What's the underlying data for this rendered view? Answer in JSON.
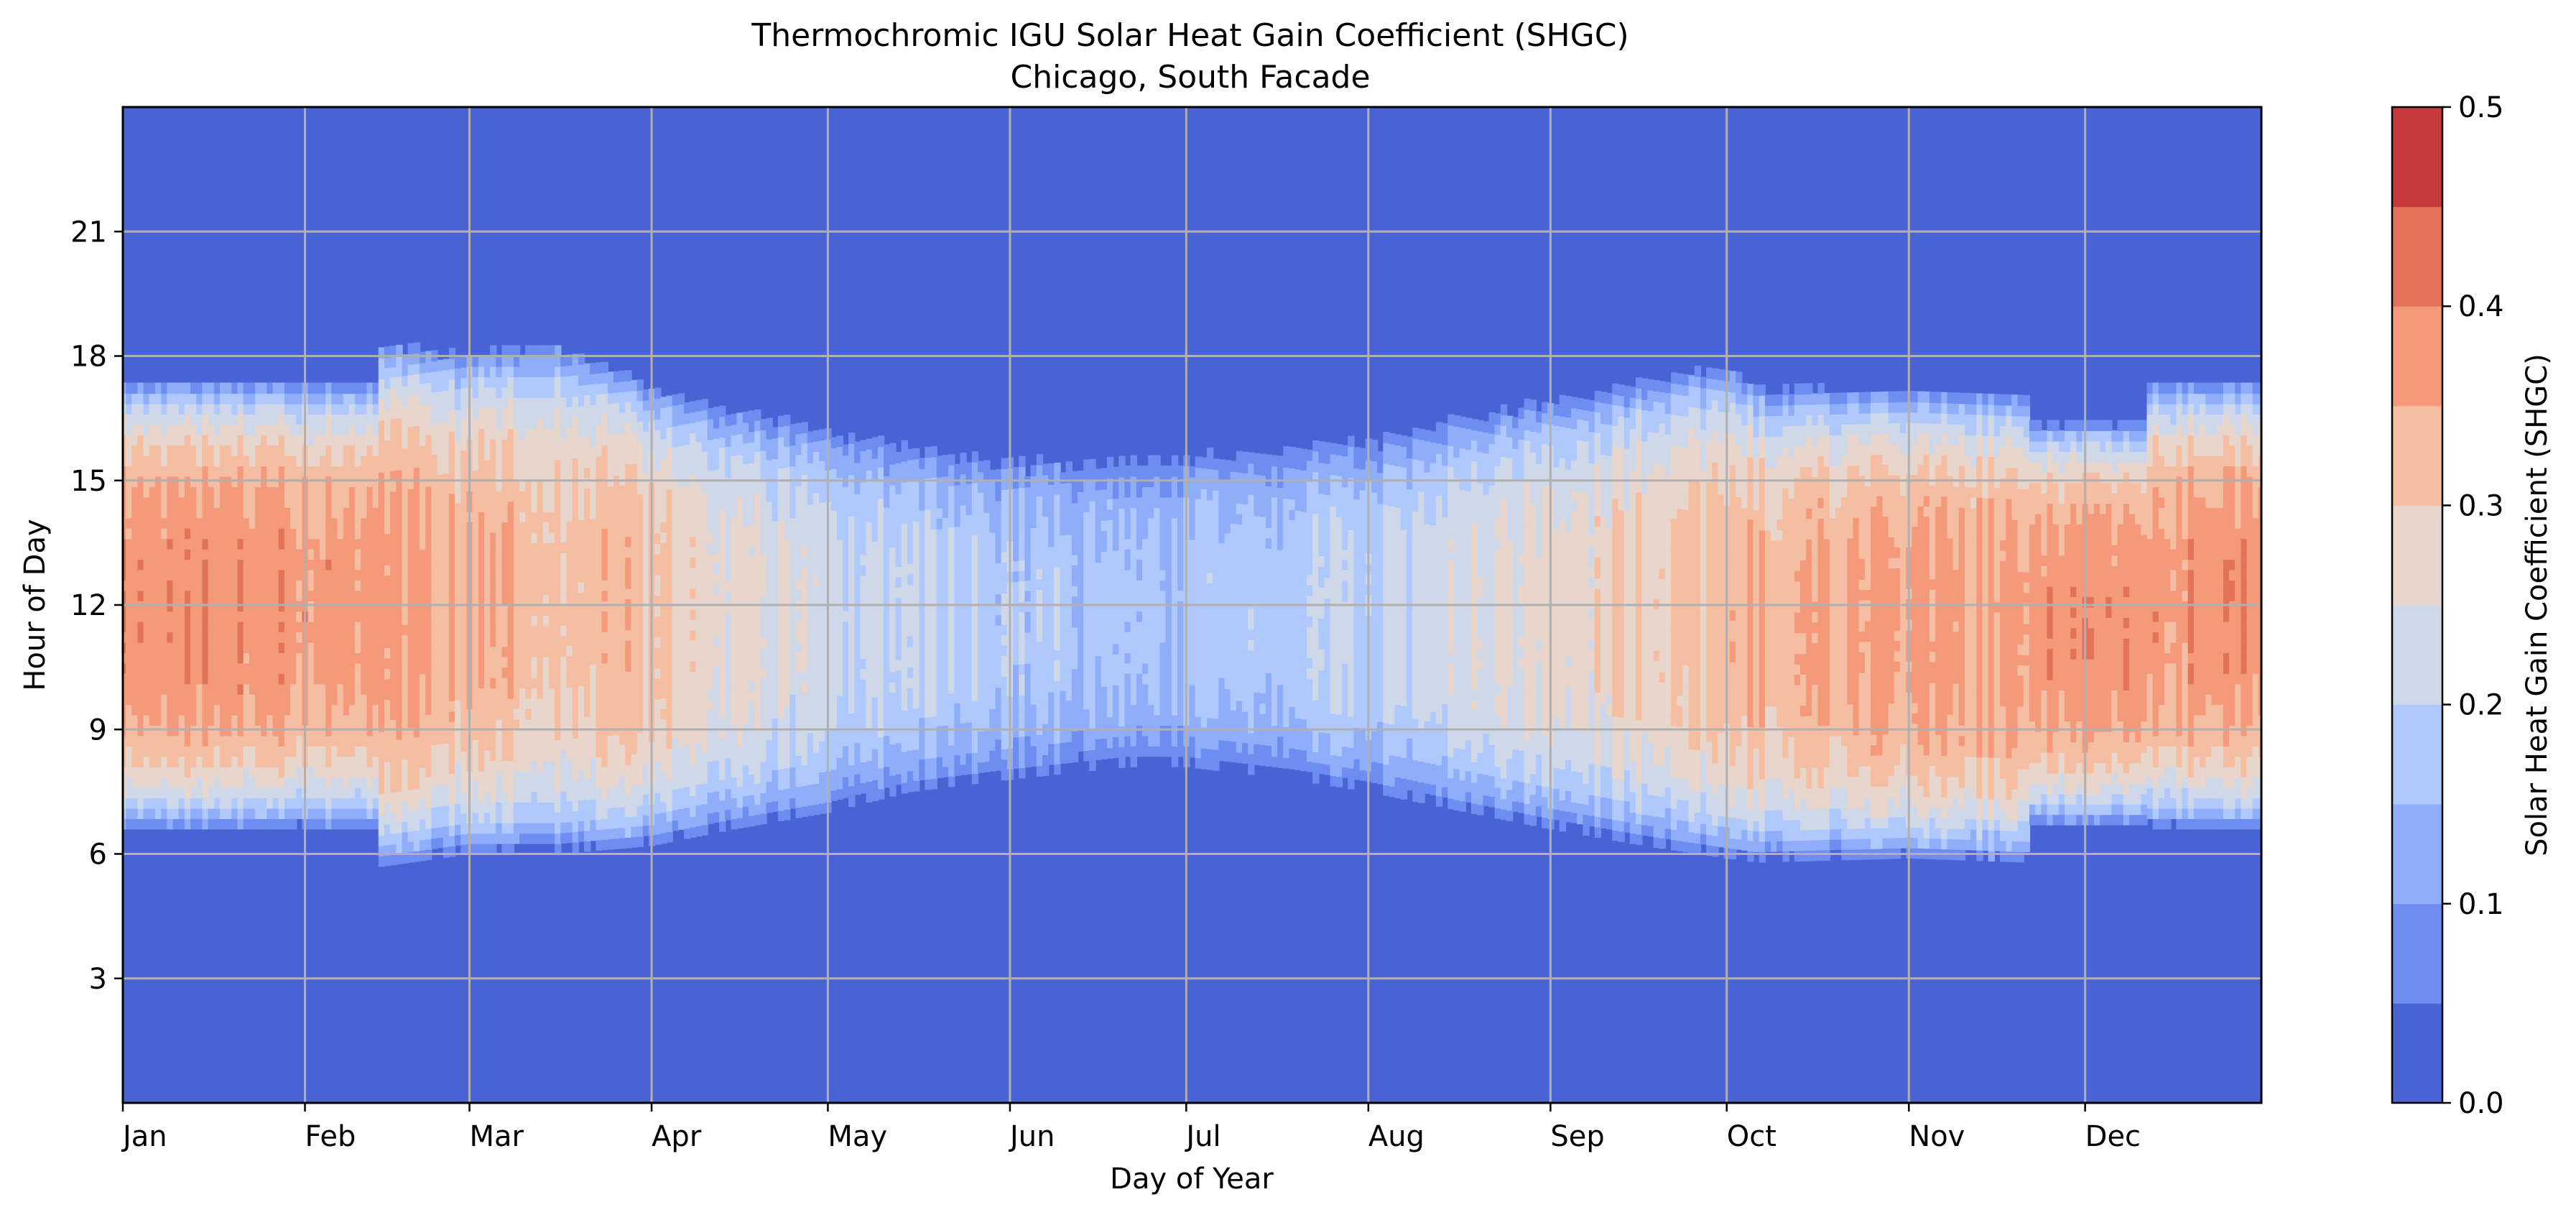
{
  "chart_data": {
    "type": "heatmap",
    "title": "Thermochromic IGU Solar Heat Gain Coefficient (SHGC)",
    "subtitle": "Chicago, South Facade",
    "xlabel": "Day of Year",
    "ylabel": "Hour of Day",
    "xlim": [
      1,
      365
    ],
    "ylim": [
      0,
      24
    ],
    "grid": true,
    "x_ticks": [
      {
        "day": 1,
        "label": "Jan"
      },
      {
        "day": 32,
        "label": "Feb"
      },
      {
        "day": 60,
        "label": "Mar"
      },
      {
        "day": 91,
        "label": "Apr"
      },
      {
        "day": 121,
        "label": "May"
      },
      {
        "day": 152,
        "label": "Jun"
      },
      {
        "day": 182,
        "label": "Jul"
      },
      {
        "day": 213,
        "label": "Aug"
      },
      {
        "day": 244,
        "label": "Sep"
      },
      {
        "day": 274,
        "label": "Oct"
      },
      {
        "day": 305,
        "label": "Nov"
      },
      {
        "day": 335,
        "label": "Dec"
      }
    ],
    "y_ticks": [
      3,
      6,
      9,
      12,
      15,
      18,
      21
    ],
    "y_tick_labels": [
      "3",
      "6",
      "9",
      "12",
      "15",
      "18",
      "21"
    ],
    "colorbar": {
      "label": "Solar Heat Gain Coefficient (SHGC)",
      "min": 0.0,
      "max": 0.5,
      "tick_labels": [
        "0.0",
        "0.1",
        "0.2",
        "0.3",
        "0.4",
        "0.5"
      ],
      "levels": [
        0.0,
        0.05,
        0.1,
        0.15,
        0.2,
        0.25,
        0.3,
        0.35,
        0.4,
        0.45,
        0.5
      ],
      "colors": [
        "#4a63d4",
        "#6d8df0",
        "#8fadf9",
        "#b0c9fc",
        "#cfd8e9",
        "#e8d5cc",
        "#f5bea3",
        "#f49a7b",
        "#e2735a",
        "#c5383b"
      ]
    },
    "profile_points": [
      {
        "day": 1,
        "start": 6.6,
        "end": 17.4,
        "peak": 0.375
      },
      {
        "day": 20,
        "start": 6.6,
        "end": 17.4,
        "peak": 0.38
      },
      {
        "day": 44,
        "start": 6.6,
        "end": 17.4,
        "peak": 0.37
      },
      {
        "day": 45,
        "start": 5.7,
        "end": 18.3,
        "peak": 0.36
      },
      {
        "day": 60,
        "start": 6.0,
        "end": 18.1,
        "peak": 0.34
      },
      {
        "day": 75,
        "start": 6.0,
        "end": 18.4,
        "peak": 0.33
      },
      {
        "day": 91,
        "start": 6.2,
        "end": 17.3,
        "peak": 0.32
      },
      {
        "day": 105,
        "start": 6.6,
        "end": 16.8,
        "peak": 0.27
      },
      {
        "day": 121,
        "start": 7.0,
        "end": 16.3,
        "peak": 0.22
      },
      {
        "day": 135,
        "start": 7.5,
        "end": 15.9,
        "peak": 0.2
      },
      {
        "day": 152,
        "start": 7.8,
        "end": 15.6,
        "peak": 0.18
      },
      {
        "day": 172,
        "start": 8.1,
        "end": 15.6,
        "peak": 0.17
      },
      {
        "day": 182,
        "start": 8.1,
        "end": 15.7,
        "peak": 0.17
      },
      {
        "day": 200,
        "start": 7.8,
        "end": 15.9,
        "peak": 0.19
      },
      {
        "day": 213,
        "start": 7.5,
        "end": 16.1,
        "peak": 0.21
      },
      {
        "day": 230,
        "start": 7.0,
        "end": 16.6,
        "peak": 0.24
      },
      {
        "day": 244,
        "start": 6.6,
        "end": 17.0,
        "peak": 0.27
      },
      {
        "day": 260,
        "start": 6.2,
        "end": 17.5,
        "peak": 0.3
      },
      {
        "day": 274,
        "start": 5.9,
        "end": 17.8,
        "peak": 0.33
      },
      {
        "day": 279,
        "start": 5.8,
        "end": 17.3,
        "peak": 0.34
      },
      {
        "day": 305,
        "start": 5.9,
        "end": 17.2,
        "peak": 0.36
      },
      {
        "day": 325,
        "start": 5.8,
        "end": 17.1,
        "peak": 0.37
      },
      {
        "day": 326,
        "start": 6.7,
        "end": 16.4,
        "peak": 0.37
      },
      {
        "day": 345,
        "start": 6.7,
        "end": 16.4,
        "peak": 0.38
      },
      {
        "day": 346,
        "start": 6.6,
        "end": 17.4,
        "peak": 0.38
      },
      {
        "day": 365,
        "start": 6.6,
        "end": 17.4,
        "peak": 0.38
      }
    ]
  }
}
